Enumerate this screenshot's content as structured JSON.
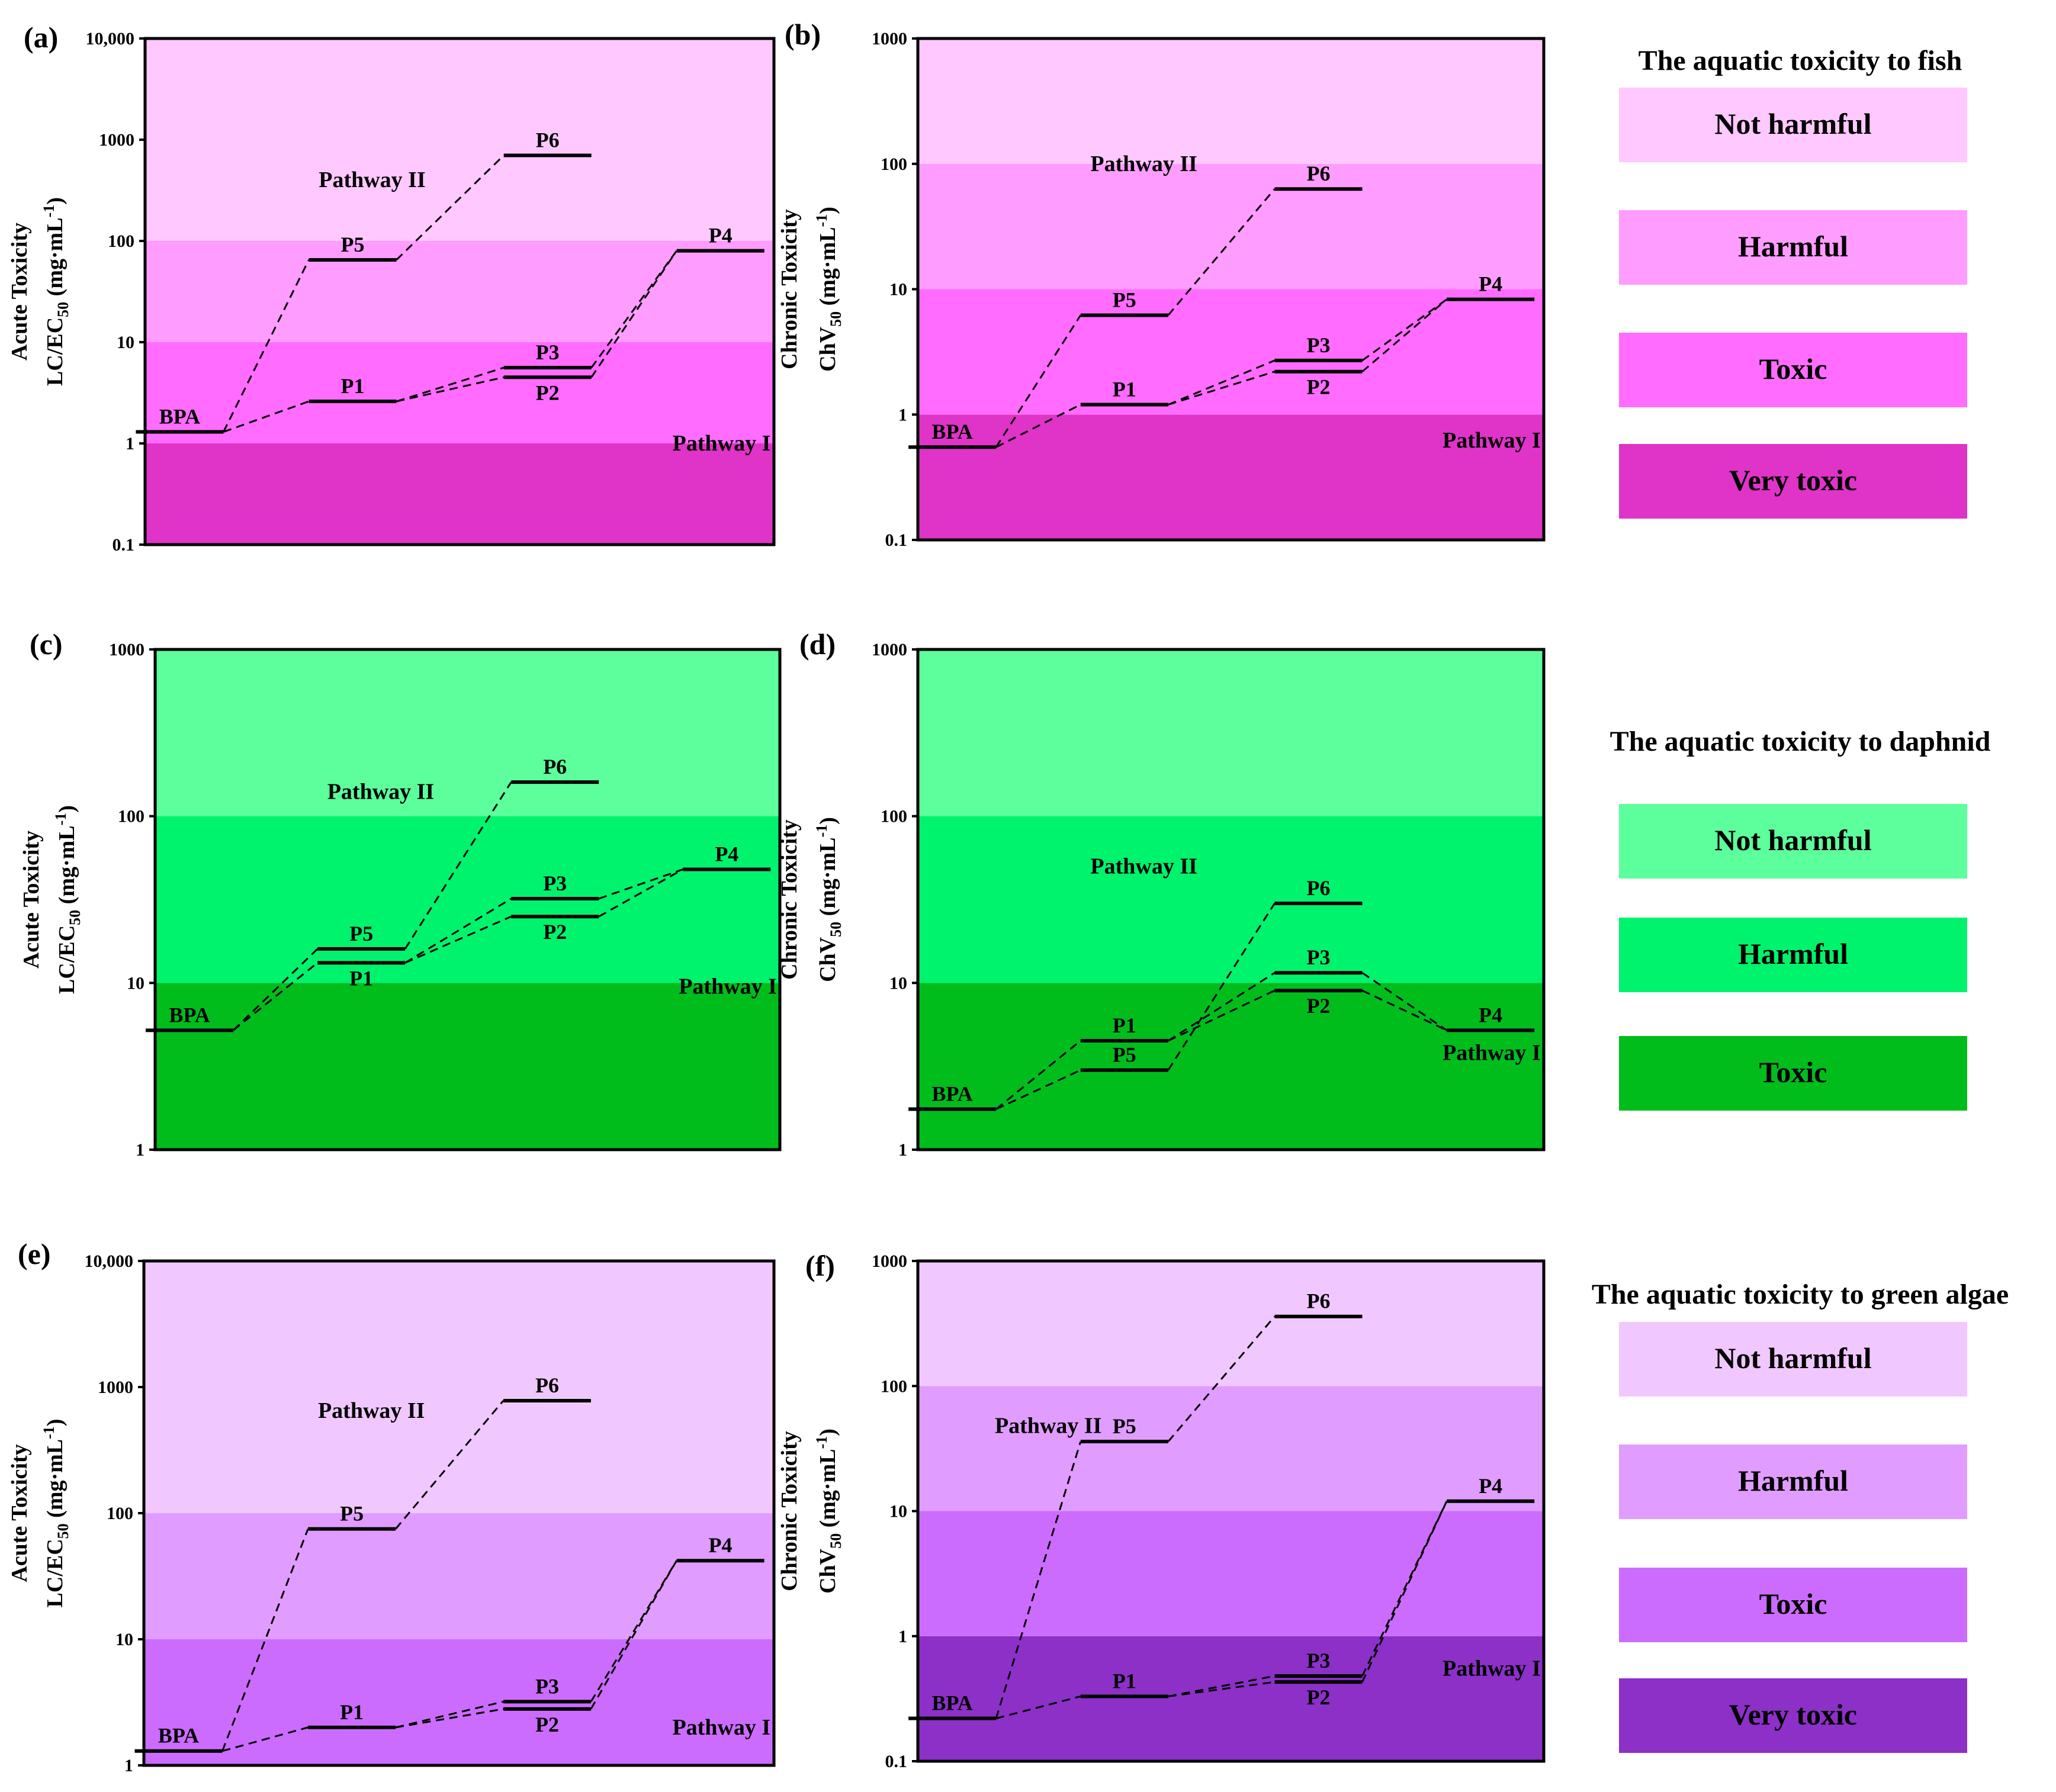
{
  "figure": {
    "legends": [
      {
        "title": "The aquatic toxicity to fish",
        "items": [
          {
            "label": "Not harmful",
            "color": "#ffc8ff"
          },
          {
            "label": "Harmful",
            "color": "#ff9cff"
          },
          {
            "label": "Toxic",
            "color": "#ff6cff"
          },
          {
            "label": "Very toxic",
            "color": "#e033c8"
          }
        ]
      },
      {
        "title": "The aquatic toxicity to daphnid",
        "items": [
          {
            "label": "Not harmful",
            "color": "#5cff9c"
          },
          {
            "label": "Harmful",
            "color": "#00f36c"
          },
          {
            "label": "Toxic",
            "color": "#00bd1c"
          }
        ]
      },
      {
        "title": "The aquatic toxicity to green algae",
        "items": [
          {
            "label": "Not harmful",
            "color": "#f0c8ff"
          },
          {
            "label": "Harmful",
            "color": "#e09cff"
          },
          {
            "label": "Toxic",
            "color": "#cc6cff"
          },
          {
            "label": "Very toxic",
            "color": "#8c30c8"
          }
        ]
      }
    ]
  },
  "chart_data": [
    {
      "panel": "(a)",
      "type": "line",
      "title": "",
      "ylabel_line1": "Acute Toxicity",
      "ylabel_line2": "LC/EC",
      "ylabel_sub": "50",
      "ylabel_unit": " (mg·mL",
      "ylabel_sup": "-1",
      "ylabel_end": ")",
      "yscale": "log",
      "ylim": [
        0.1,
        10000
      ],
      "yticks": [
        0.1,
        1,
        10,
        100,
        1000,
        10000
      ],
      "ytick_labels": [
        "0.1",
        "1",
        "10",
        "100",
        "1000",
        "10,000"
      ],
      "bands": [
        {
          "from": 0.1,
          "to": 1,
          "color": "#e033c8"
        },
        {
          "from": 1,
          "to": 10,
          "color": "#ff6cff"
        },
        {
          "from": 10,
          "to": 100,
          "color": "#ff9cff"
        },
        {
          "from": 100,
          "to": 10000,
          "color": "#ffc8ff"
        }
      ],
      "pathway_labels": [
        {
          "text": "Pathway II",
          "x": 1.3,
          "y": 400
        },
        {
          "text": "Pathway I",
          "x": 3.3,
          "y": 1.0
        }
      ],
      "points": [
        {
          "name": "BPA",
          "x": 0,
          "y": 1.3,
          "label_pos": "above"
        },
        {
          "name": "P1",
          "x": 1,
          "y": 2.6,
          "label_pos": "above"
        },
        {
          "name": "P2",
          "x": 2,
          "y": 4.5,
          "label_pos": "below"
        },
        {
          "name": "P3",
          "x": 2,
          "y": 5.6,
          "label_pos": "above"
        },
        {
          "name": "P4",
          "x": 3,
          "y": 80,
          "label_pos": "above"
        },
        {
          "name": "P5",
          "x": 1,
          "y": 65,
          "label_pos": "above"
        },
        {
          "name": "P6",
          "x": 2,
          "y": 700,
          "label_pos": "above"
        }
      ],
      "links": [
        [
          "BPA",
          "P1"
        ],
        [
          "P1",
          "P2"
        ],
        [
          "P1",
          "P3"
        ],
        [
          "P2",
          "P4"
        ],
        [
          "P3",
          "P4"
        ],
        [
          "BPA",
          "P5"
        ],
        [
          "P5",
          "P6"
        ]
      ]
    },
    {
      "panel": "(b)",
      "type": "line",
      "title": "",
      "ylabel_line1": "Chronic Toxicity",
      "ylabel_line2": "ChV",
      "ylabel_sub": "50",
      "ylabel_unit": " (mg·mL",
      "ylabel_sup": "-1",
      "ylabel_end": ")",
      "yscale": "log",
      "ylim": [
        0.1,
        1000
      ],
      "yticks": [
        0.1,
        1,
        10,
        100,
        1000
      ],
      "ytick_labels": [
        "0.1",
        "1",
        "10",
        "100",
        "1000"
      ],
      "bands": [
        {
          "from": 0.1,
          "to": 1,
          "color": "#e033c8"
        },
        {
          "from": 1,
          "to": 10,
          "color": "#ff6cff"
        },
        {
          "from": 10,
          "to": 100,
          "color": "#ff9cff"
        },
        {
          "from": 100,
          "to": 1000,
          "color": "#ffc8ff"
        }
      ],
      "pathway_labels": [
        {
          "text": "Pathway II",
          "x": 1.3,
          "y": 100
        },
        {
          "text": "Pathway I",
          "x": 3.3,
          "y": 0.62
        }
      ],
      "points": [
        {
          "name": "BPA",
          "x": 0,
          "y": 0.55,
          "label_pos": "above"
        },
        {
          "name": "P1",
          "x": 1,
          "y": 1.2,
          "label_pos": "above"
        },
        {
          "name": "P2",
          "x": 2,
          "y": 2.2,
          "label_pos": "below"
        },
        {
          "name": "P3",
          "x": 2,
          "y": 2.7,
          "label_pos": "above"
        },
        {
          "name": "P4",
          "x": 3,
          "y": 8.3,
          "label_pos": "above"
        },
        {
          "name": "P5",
          "x": 1,
          "y": 6.2,
          "label_pos": "above"
        },
        {
          "name": "P6",
          "x": 2,
          "y": 63,
          "label_pos": "above"
        }
      ],
      "links": [
        [
          "BPA",
          "P1"
        ],
        [
          "P1",
          "P2"
        ],
        [
          "P1",
          "P3"
        ],
        [
          "P2",
          "P4"
        ],
        [
          "P3",
          "P4"
        ],
        [
          "BPA",
          "P5"
        ],
        [
          "P5",
          "P6"
        ]
      ]
    },
    {
      "panel": "(c)",
      "type": "line",
      "title": "",
      "ylabel_line1": "Acute Toxicity",
      "ylabel_line2": "LC/EC",
      "ylabel_sub": "50",
      "ylabel_unit": " (mg·mL",
      "ylabel_sup": "-1",
      "ylabel_end": ")",
      "yscale": "log",
      "ylim": [
        1,
        1000
      ],
      "yticks": [
        1,
        10,
        100,
        1000
      ],
      "ytick_labels": [
        "1",
        "10",
        "100",
        "1000"
      ],
      "bands": [
        {
          "from": 1,
          "to": 10,
          "color": "#00bd1c"
        },
        {
          "from": 10,
          "to": 100,
          "color": "#00f36c"
        },
        {
          "from": 100,
          "to": 1000,
          "color": "#5cff9c"
        }
      ],
      "pathway_labels": [
        {
          "text": "Pathway II",
          "x": 1.3,
          "y": 140
        },
        {
          "text": "Pathway I",
          "x": 3.3,
          "y": 9.5
        }
      ],
      "points": [
        {
          "name": "BPA",
          "x": 0,
          "y": 5.2,
          "label_pos": "above"
        },
        {
          "name": "P1",
          "x": 1,
          "y": 13.2,
          "label_pos": "below"
        },
        {
          "name": "P2",
          "x": 2,
          "y": 25,
          "label_pos": "below"
        },
        {
          "name": "P3",
          "x": 2,
          "y": 32,
          "label_pos": "above"
        },
        {
          "name": "P4",
          "x": 3,
          "y": 48,
          "label_pos": "above"
        },
        {
          "name": "P5",
          "x": 1,
          "y": 16,
          "label_pos": "above"
        },
        {
          "name": "P6",
          "x": 2,
          "y": 160,
          "label_pos": "above"
        }
      ],
      "links": [
        [
          "BPA",
          "P1"
        ],
        [
          "P1",
          "P2"
        ],
        [
          "P1",
          "P3"
        ],
        [
          "P2",
          "P4"
        ],
        [
          "P3",
          "P4"
        ],
        [
          "BPA",
          "P5"
        ],
        [
          "P5",
          "P6"
        ]
      ]
    },
    {
      "panel": "(d)",
      "type": "line",
      "title": "",
      "ylabel_line1": "Chronic Toxicity",
      "ylabel_line2": "ChV",
      "ylabel_sub": "50",
      "ylabel_unit": " (mg·mL",
      "ylabel_sup": "-1",
      "ylabel_end": ")",
      "yscale": "log",
      "ylim": [
        1,
        1000
      ],
      "yticks": [
        1,
        10,
        100,
        1000
      ],
      "ytick_labels": [
        "1",
        "10",
        "100",
        "1000"
      ],
      "bands": [
        {
          "from": 1,
          "to": 10,
          "color": "#00bd1c"
        },
        {
          "from": 10,
          "to": 100,
          "color": "#00f36c"
        },
        {
          "from": 100,
          "to": 1000,
          "color": "#5cff9c"
        }
      ],
      "pathway_labels": [
        {
          "text": "Pathway II",
          "x": 1.3,
          "y": 50
        },
        {
          "text": "Pathway I",
          "x": 3.3,
          "y": 3.8
        }
      ],
      "points": [
        {
          "name": "BPA",
          "x": 0,
          "y": 1.75,
          "label_pos": "above"
        },
        {
          "name": "P1",
          "x": 1,
          "y": 4.5,
          "label_pos": "above"
        },
        {
          "name": "P2",
          "x": 2,
          "y": 9,
          "label_pos": "below"
        },
        {
          "name": "P3",
          "x": 2,
          "y": 11.5,
          "label_pos": "above"
        },
        {
          "name": "P4",
          "x": 3,
          "y": 5.2,
          "label_pos": "above"
        },
        {
          "name": "P5",
          "x": 1,
          "y": 3.0,
          "label_pos": "above"
        },
        {
          "name": "P6",
          "x": 2,
          "y": 30,
          "label_pos": "above"
        }
      ],
      "links": [
        [
          "BPA",
          "P1"
        ],
        [
          "P1",
          "P2"
        ],
        [
          "P1",
          "P3"
        ],
        [
          "P2",
          "P4"
        ],
        [
          "P3",
          "P4"
        ],
        [
          "BPA",
          "P5"
        ],
        [
          "P5",
          "P6"
        ]
      ]
    },
    {
      "panel": "(e)",
      "type": "line",
      "title": "",
      "ylabel_line1": "Acute Toxicity",
      "ylabel_line2": "LC/EC",
      "ylabel_sub": "50",
      "ylabel_unit": " (mg·mL",
      "ylabel_sup": "-1",
      "ylabel_end": ")",
      "yscale": "log",
      "ylim": [
        1,
        10000
      ],
      "yticks": [
        1,
        10,
        100,
        1000,
        10000
      ],
      "ytick_labels": [
        "1",
        "10",
        "100",
        "1000",
        "10,000"
      ],
      "bands": [
        {
          "from": 1,
          "to": 10,
          "color": "#cc6cff"
        },
        {
          "from": 10,
          "to": 100,
          "color": "#e09cff"
        },
        {
          "from": 100,
          "to": 10000,
          "color": "#f0c8ff"
        }
      ],
      "pathway_labels": [
        {
          "text": "Pathway II",
          "x": 1.3,
          "y": 650
        },
        {
          "text": "Pathway I",
          "x": 3.3,
          "y": 2.0
        }
      ],
      "points": [
        {
          "name": "BPA",
          "x": 0,
          "y": 1.3,
          "label_pos": "above"
        },
        {
          "name": "P1",
          "x": 1,
          "y": 2.0,
          "label_pos": "above"
        },
        {
          "name": "P2",
          "x": 2,
          "y": 2.8,
          "label_pos": "below"
        },
        {
          "name": "P3",
          "x": 2,
          "y": 3.2,
          "label_pos": "above"
        },
        {
          "name": "P4",
          "x": 3,
          "y": 42,
          "label_pos": "above"
        },
        {
          "name": "P5",
          "x": 1,
          "y": 75,
          "label_pos": "above"
        },
        {
          "name": "P6",
          "x": 2,
          "y": 780,
          "label_pos": "above"
        }
      ],
      "links": [
        [
          "BPA",
          "P1"
        ],
        [
          "P1",
          "P2"
        ],
        [
          "P1",
          "P3"
        ],
        [
          "P2",
          "P4"
        ],
        [
          "P3",
          "P4"
        ],
        [
          "BPA",
          "P5"
        ],
        [
          "P5",
          "P6"
        ]
      ]
    },
    {
      "panel": "(f)",
      "type": "line",
      "title": "",
      "ylabel_line1": "Chronic Toxicity",
      "ylabel_line2": "ChV",
      "ylabel_sub": "50",
      "ylabel_unit": " (mg·mL",
      "ylabel_sup": "-1",
      "ylabel_end": ")",
      "yscale": "log",
      "ylim": [
        0.1,
        1000
      ],
      "yticks": [
        0.1,
        1,
        10,
        100,
        1000
      ],
      "ytick_labels": [
        "0.1",
        "1",
        "10",
        "100",
        "1000"
      ],
      "bands": [
        {
          "from": 0.1,
          "to": 1,
          "color": "#8c30c8"
        },
        {
          "from": 1,
          "to": 10,
          "color": "#cc6cff"
        },
        {
          "from": 10,
          "to": 100,
          "color": "#e09cff"
        },
        {
          "from": 100,
          "to": 1000,
          "color": "#f0c8ff"
        }
      ],
      "pathway_labels": [
        {
          "text": "Pathway II",
          "x": 0.75,
          "y": 48
        },
        {
          "text": "Pathway I",
          "x": 3.3,
          "y": 0.55
        }
      ],
      "points": [
        {
          "name": "BPA",
          "x": 0,
          "y": 0.22,
          "label_pos": "above"
        },
        {
          "name": "P1",
          "x": 1,
          "y": 0.33,
          "label_pos": "above"
        },
        {
          "name": "P2",
          "x": 2,
          "y": 0.43,
          "label_pos": "below"
        },
        {
          "name": "P3",
          "x": 2,
          "y": 0.48,
          "label_pos": "above"
        },
        {
          "name": "P4",
          "x": 3,
          "y": 12,
          "label_pos": "above"
        },
        {
          "name": "P5",
          "x": 1,
          "y": 36,
          "label_pos": "above"
        },
        {
          "name": "P6",
          "x": 2,
          "y": 360,
          "label_pos": "above"
        }
      ],
      "links": [
        [
          "BPA",
          "P1"
        ],
        [
          "P1",
          "P2"
        ],
        [
          "P1",
          "P3"
        ],
        [
          "P2",
          "P4"
        ],
        [
          "P3",
          "P4"
        ],
        [
          "BPA",
          "P5"
        ],
        [
          "P5",
          "P6"
        ]
      ]
    }
  ]
}
